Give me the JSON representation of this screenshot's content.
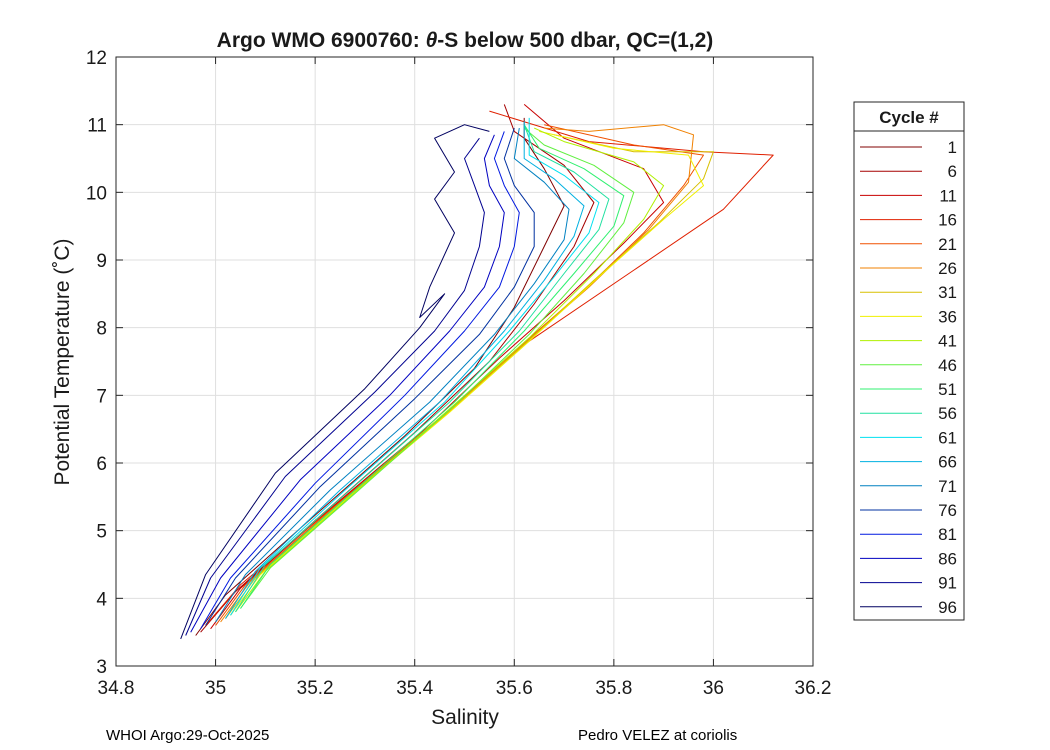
{
  "chart_data": {
    "type": "line",
    "title": "Argo WMO 6900760: θ-S below 500 dbar,  QC=(1,2)",
    "title_parts": {
      "pre": "Argo WMO 6900760: ",
      "theta": "θ",
      "post": "-S below 500 dbar,  QC=(1,2)"
    },
    "xlabel": "Salinity",
    "ylabel": "Potential Temperature (˚C)",
    "xlim": [
      34.8,
      36.2
    ],
    "ylim": [
      3,
      12
    ],
    "xticks": [
      34.8,
      35,
      35.2,
      35.4,
      35.6,
      35.8,
      36,
      36.2
    ],
    "xtick_labels": [
      "34.8",
      "35",
      "35.2",
      "35.4",
      "35.6",
      "35.8",
      "36",
      "36.2"
    ],
    "yticks": [
      3,
      4,
      5,
      6,
      7,
      8,
      9,
      10,
      11,
      12
    ],
    "ytick_labels": [
      "3",
      "4",
      "5",
      "6",
      "7",
      "8",
      "9",
      "10",
      "11",
      "12"
    ],
    "grid": true,
    "legend_title": "Cycle #",
    "legend_position": "right-outside",
    "series": [
      {
        "name": "1",
        "color": "#800000",
        "points": [
          [
            34.96,
            3.45
          ],
          [
            35.02,
            4.05
          ],
          [
            35.18,
            5.1
          ],
          [
            35.38,
            6.4
          ],
          [
            35.52,
            7.4
          ],
          [
            35.6,
            8.3
          ],
          [
            35.66,
            9.2
          ],
          [
            35.7,
            9.8
          ],
          [
            35.66,
            10.35
          ],
          [
            35.62,
            10.8
          ],
          [
            35.62,
            11.1
          ]
        ]
      },
      {
        "name": "6",
        "color": "#a50000",
        "points": [
          [
            34.97,
            3.5
          ],
          [
            35.04,
            4.1
          ],
          [
            35.2,
            5.15
          ],
          [
            35.4,
            6.45
          ],
          [
            35.55,
            7.5
          ],
          [
            35.64,
            8.35
          ],
          [
            35.72,
            9.2
          ],
          [
            35.76,
            9.85
          ],
          [
            35.7,
            10.4
          ],
          [
            35.6,
            10.9
          ],
          [
            35.58,
            11.3
          ]
        ]
      },
      {
        "name": "11",
        "color": "#c80000",
        "points": [
          [
            34.99,
            3.55
          ],
          [
            35.05,
            4.15
          ],
          [
            35.21,
            5.2
          ],
          [
            35.42,
            6.5
          ],
          [
            35.57,
            7.55
          ],
          [
            35.7,
            8.4
          ],
          [
            35.82,
            9.25
          ],
          [
            35.9,
            9.85
          ],
          [
            35.86,
            10.35
          ],
          [
            35.7,
            10.8
          ],
          [
            35.62,
            11.3
          ]
        ]
      },
      {
        "name": "16",
        "color": "#e02000",
        "points": [
          [
            34.98,
            3.6
          ],
          [
            35.05,
            4.2
          ],
          [
            35.22,
            5.25
          ],
          [
            35.44,
            6.6
          ],
          [
            35.62,
            7.75
          ],
          [
            35.85,
            8.9
          ],
          [
            36.02,
            9.75
          ],
          [
            36.12,
            10.55
          ],
          [
            35.98,
            10.6
          ],
          [
            35.75,
            10.75
          ],
          [
            35.55,
            11.2
          ]
        ]
      },
      {
        "name": "21",
        "color": "#f05000",
        "points": [
          [
            35.0,
            3.6
          ],
          [
            35.06,
            4.2
          ],
          [
            35.23,
            5.3
          ],
          [
            35.44,
            6.6
          ],
          [
            35.6,
            7.65
          ],
          [
            35.74,
            8.55
          ],
          [
            35.86,
            9.4
          ],
          [
            35.94,
            10.1
          ],
          [
            35.98,
            10.55
          ],
          [
            35.84,
            10.7
          ],
          [
            35.66,
            11.0
          ]
        ]
      },
      {
        "name": "26",
        "color": "#f08000",
        "points": [
          [
            35.01,
            3.65
          ],
          [
            35.07,
            4.25
          ],
          [
            35.24,
            5.35
          ],
          [
            35.45,
            6.65
          ],
          [
            35.61,
            7.7
          ],
          [
            35.75,
            8.6
          ],
          [
            35.87,
            9.45
          ],
          [
            35.95,
            10.15
          ],
          [
            35.96,
            10.85
          ],
          [
            35.9,
            11.0
          ],
          [
            35.75,
            10.9
          ],
          [
            35.66,
            10.95
          ]
        ]
      },
      {
        "name": "31",
        "color": "#d8c000",
        "points": [
          [
            35.02,
            3.7
          ],
          [
            35.08,
            4.3
          ],
          [
            35.25,
            5.4
          ],
          [
            35.46,
            6.7
          ],
          [
            35.62,
            7.75
          ],
          [
            35.76,
            8.7
          ],
          [
            35.89,
            9.55
          ],
          [
            35.98,
            10.2
          ],
          [
            36.0,
            10.6
          ],
          [
            35.84,
            10.6
          ],
          [
            35.68,
            10.85
          ]
        ]
      },
      {
        "name": "36",
        "color": "#f0f000",
        "points": [
          [
            35.03,
            3.75
          ],
          [
            35.09,
            4.35
          ],
          [
            35.26,
            5.45
          ],
          [
            35.47,
            6.75
          ],
          [
            35.63,
            7.8
          ],
          [
            35.77,
            8.75
          ],
          [
            35.9,
            9.6
          ],
          [
            35.98,
            10.1
          ],
          [
            35.95,
            10.55
          ],
          [
            35.8,
            10.65
          ],
          [
            35.65,
            10.9
          ]
        ]
      },
      {
        "name": "41",
        "color": "#b0f000",
        "points": [
          [
            35.04,
            3.8
          ],
          [
            35.1,
            4.4
          ],
          [
            35.27,
            5.5
          ],
          [
            35.47,
            6.8
          ],
          [
            35.63,
            7.85
          ],
          [
            35.76,
            8.8
          ],
          [
            35.86,
            9.6
          ],
          [
            35.9,
            10.1
          ],
          [
            35.84,
            10.45
          ],
          [
            35.7,
            10.75
          ],
          [
            35.64,
            10.95
          ]
        ]
      },
      {
        "name": "46",
        "color": "#60f040",
        "points": [
          [
            35.05,
            3.85
          ],
          [
            35.11,
            4.45
          ],
          [
            35.28,
            5.55
          ],
          [
            35.48,
            6.85
          ],
          [
            35.63,
            7.9
          ],
          [
            35.74,
            8.8
          ],
          [
            35.82,
            9.55
          ],
          [
            35.84,
            10.0
          ],
          [
            35.76,
            10.4
          ],
          [
            35.66,
            10.7
          ],
          [
            35.62,
            10.95
          ]
        ]
      },
      {
        "name": "51",
        "color": "#30f070",
        "points": [
          [
            35.05,
            3.85
          ],
          [
            35.11,
            4.5
          ],
          [
            35.28,
            5.6
          ],
          [
            35.48,
            6.9
          ],
          [
            35.62,
            7.95
          ],
          [
            35.72,
            8.8
          ],
          [
            35.8,
            9.5
          ],
          [
            35.82,
            9.95
          ],
          [
            35.74,
            10.35
          ],
          [
            35.65,
            10.65
          ],
          [
            35.62,
            11.0
          ]
        ]
      },
      {
        "name": "56",
        "color": "#20e0a0",
        "points": [
          [
            35.04,
            3.8
          ],
          [
            35.1,
            4.5
          ],
          [
            35.27,
            5.6
          ],
          [
            35.47,
            6.9
          ],
          [
            35.61,
            7.95
          ],
          [
            35.7,
            8.8
          ],
          [
            35.77,
            9.45
          ],
          [
            35.79,
            9.9
          ],
          [
            35.72,
            10.3
          ],
          [
            35.64,
            10.6
          ],
          [
            35.62,
            11.0
          ]
        ]
      },
      {
        "name": "61",
        "color": "#00e0f0",
        "points": [
          [
            35.03,
            3.75
          ],
          [
            35.09,
            4.45
          ],
          [
            35.26,
            5.6
          ],
          [
            35.46,
            6.9
          ],
          [
            35.59,
            7.95
          ],
          [
            35.68,
            8.75
          ],
          [
            35.75,
            9.4
          ],
          [
            35.77,
            9.85
          ],
          [
            35.7,
            10.25
          ],
          [
            35.63,
            10.55
          ],
          [
            35.63,
            11.1
          ]
        ]
      },
      {
        "name": "66",
        "color": "#00b0e0",
        "points": [
          [
            35.02,
            3.7
          ],
          [
            35.08,
            4.4
          ],
          [
            35.25,
            5.6
          ],
          [
            35.45,
            6.9
          ],
          [
            35.58,
            7.95
          ],
          [
            35.66,
            8.7
          ],
          [
            35.72,
            9.35
          ],
          [
            35.74,
            9.8
          ],
          [
            35.68,
            10.2
          ],
          [
            35.62,
            10.5
          ],
          [
            35.62,
            11.05
          ]
        ]
      },
      {
        "name": "71",
        "color": "#0080c0",
        "points": [
          [
            35.0,
            3.65
          ],
          [
            35.06,
            4.35
          ],
          [
            35.23,
            5.6
          ],
          [
            35.43,
            6.9
          ],
          [
            35.56,
            7.9
          ],
          [
            35.64,
            8.65
          ],
          [
            35.7,
            9.3
          ],
          [
            35.71,
            9.75
          ],
          [
            35.66,
            10.15
          ],
          [
            35.6,
            10.5
          ],
          [
            35.61,
            10.95
          ]
        ]
      },
      {
        "name": "76",
        "color": "#0030a0",
        "points": [
          [
            34.98,
            3.6
          ],
          [
            35.04,
            4.3
          ],
          [
            35.21,
            5.65
          ],
          [
            35.4,
            6.95
          ],
          [
            35.53,
            7.9
          ],
          [
            35.6,
            8.6
          ],
          [
            35.64,
            9.2
          ],
          [
            35.64,
            9.7
          ],
          [
            35.6,
            10.1
          ],
          [
            35.58,
            10.5
          ],
          [
            35.6,
            10.95
          ]
        ]
      },
      {
        "name": "81",
        "color": "#0018e0",
        "points": [
          [
            34.97,
            3.55
          ],
          [
            35.03,
            4.3
          ],
          [
            35.2,
            5.7
          ],
          [
            35.38,
            7.0
          ],
          [
            35.5,
            7.95
          ],
          [
            35.57,
            8.6
          ],
          [
            35.6,
            9.2
          ],
          [
            35.61,
            9.7
          ],
          [
            35.58,
            10.1
          ],
          [
            35.56,
            10.5
          ],
          [
            35.58,
            10.9
          ]
        ]
      },
      {
        "name": "86",
        "color": "#0000c0",
        "points": [
          [
            34.95,
            3.5
          ],
          [
            35.01,
            4.3
          ],
          [
            35.17,
            5.75
          ],
          [
            35.35,
            7.0
          ],
          [
            35.47,
            7.95
          ],
          [
            35.54,
            8.6
          ],
          [
            35.57,
            9.2
          ],
          [
            35.58,
            9.7
          ],
          [
            35.55,
            10.1
          ],
          [
            35.54,
            10.5
          ],
          [
            35.56,
            10.85
          ]
        ]
      },
      {
        "name": "91",
        "color": "#000090",
        "points": [
          [
            34.94,
            3.45
          ],
          [
            34.99,
            4.3
          ],
          [
            35.14,
            5.8
          ],
          [
            35.32,
            7.05
          ],
          [
            35.44,
            7.95
          ],
          [
            35.5,
            8.55
          ],
          [
            35.53,
            9.2
          ],
          [
            35.54,
            9.7
          ],
          [
            35.52,
            10.1
          ],
          [
            35.5,
            10.5
          ],
          [
            35.53,
            10.8
          ]
        ]
      },
      {
        "name": "96",
        "color": "#000060",
        "points": [
          [
            34.93,
            3.4
          ],
          [
            34.98,
            4.35
          ],
          [
            35.12,
            5.85
          ],
          [
            35.3,
            7.1
          ],
          [
            35.41,
            8.0
          ],
          [
            35.46,
            8.5
          ],
          [
            35.41,
            8.15
          ],
          [
            35.43,
            8.6
          ],
          [
            35.48,
            9.4
          ],
          [
            35.44,
            9.9
          ],
          [
            35.48,
            10.3
          ],
          [
            35.44,
            10.8
          ],
          [
            35.5,
            11.0
          ],
          [
            35.55,
            10.9
          ]
        ]
      }
    ]
  },
  "footer": {
    "left": "WHOI Argo:29-Oct-2025",
    "right": "Pedro VELEZ at coriolis"
  }
}
